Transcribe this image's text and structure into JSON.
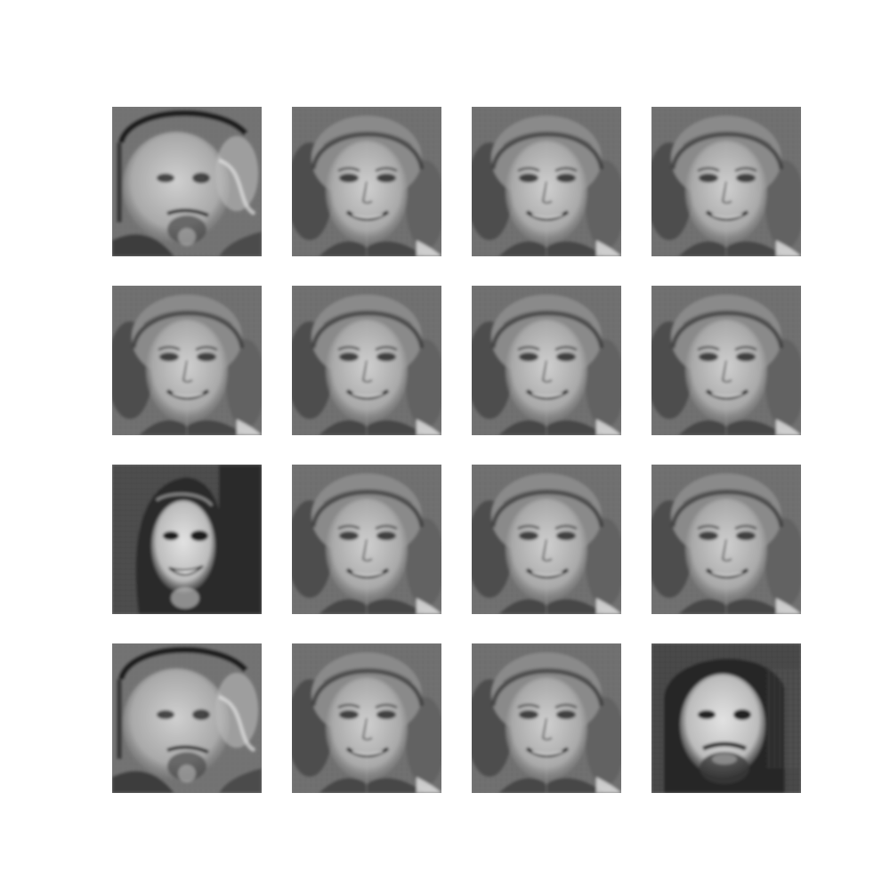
{
  "grid": {
    "rows": 4,
    "cols": 4,
    "colormap": "gray",
    "tiles": [
      {
        "face": "profile-man",
        "tone": "mid"
      },
      {
        "face": "smiling-woman",
        "tone": "mid"
      },
      {
        "face": "smiling-woman",
        "tone": "mid"
      },
      {
        "face": "smiling-woman",
        "tone": "mid"
      },
      {
        "face": "smiling-woman",
        "tone": "mid"
      },
      {
        "face": "smiling-woman",
        "tone": "mid"
      },
      {
        "face": "smiling-woman",
        "tone": "mid"
      },
      {
        "face": "smiling-woman",
        "tone": "mid"
      },
      {
        "face": "long-hair-woman",
        "tone": "dark"
      },
      {
        "face": "smiling-woman",
        "tone": "mid"
      },
      {
        "face": "smiling-woman",
        "tone": "mid"
      },
      {
        "face": "smiling-woman",
        "tone": "mid"
      },
      {
        "face": "profile-man",
        "tone": "mid"
      },
      {
        "face": "smiling-woman",
        "tone": "mid"
      },
      {
        "face": "smiling-woman",
        "tone": "mid"
      },
      {
        "face": "bearded-man",
        "tone": "dark"
      }
    ]
  }
}
